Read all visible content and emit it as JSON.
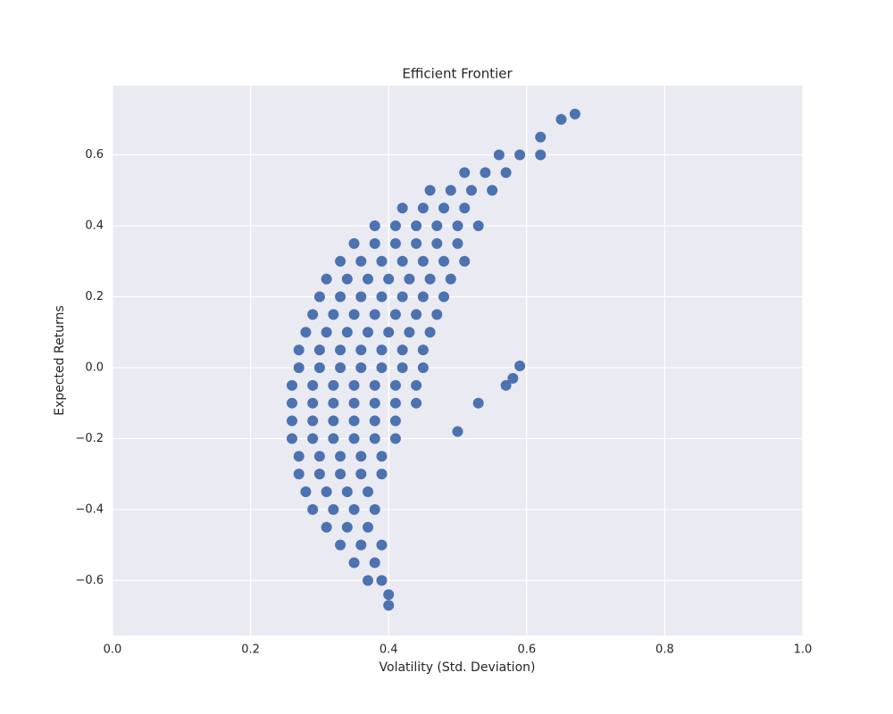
{
  "chart_data": {
    "type": "scatter",
    "title": "Efficient Frontier",
    "x_label": "Volatility (Std. Deviation)",
    "y_label": "Expected Returns",
    "xlim": [
      0,
      1
    ],
    "ylim": [
      -0.755,
      0.795
    ],
    "xticks": [
      {
        "value": 0,
        "label": "0.0"
      },
      0.2,
      0.4,
      0.6,
      0.8,
      {
        "value": 1,
        "label": "1.0"
      }
    ],
    "yticks": [
      {
        "value": -0.6,
        "label": "−0.6"
      },
      {
        "value": -0.4,
        "label": "−0.4"
      },
      {
        "value": -0.2,
        "label": "−0.2"
      },
      {
        "value": 0,
        "label": "0.0"
      },
      0.2,
      0.4,
      0.6
    ],
    "grid": true,
    "series": [
      {
        "color": "#4c72b0",
        "x": [
          0.56,
          0.59,
          0.62,
          0.51,
          0.54,
          0.57,
          0.46,
          0.49,
          0.52,
          0.55,
          0.42,
          0.45,
          0.48,
          0.51,
          0.38,
          0.41,
          0.44,
          0.47,
          0.5,
          0.53,
          0.35,
          0.38,
          0.41,
          0.44,
          0.47,
          0.5,
          0.33,
          0.36,
          0.39,
          0.42,
          0.45,
          0.48,
          0.51,
          0.31,
          0.34,
          0.37,
          0.4,
          0.43,
          0.46,
          0.49,
          0.3,
          0.33,
          0.36,
          0.39,
          0.42,
          0.45,
          0.48,
          0.29,
          0.32,
          0.35,
          0.38,
          0.41,
          0.44,
          0.47,
          0.28,
          0.31,
          0.34,
          0.37,
          0.4,
          0.43,
          0.46,
          0.27,
          0.3,
          0.33,
          0.36,
          0.39,
          0.42,
          0.45,
          0.27,
          0.3,
          0.33,
          0.36,
          0.39,
          0.42,
          0.45,
          0.26,
          0.29,
          0.32,
          0.35,
          0.38,
          0.41,
          0.44,
          0.26,
          0.29,
          0.32,
          0.35,
          0.38,
          0.41,
          0.44,
          0.26,
          0.29,
          0.32,
          0.35,
          0.38,
          0.41,
          0.26,
          0.29,
          0.32,
          0.35,
          0.38,
          0.41,
          0.27,
          0.3,
          0.33,
          0.36,
          0.39,
          0.27,
          0.3,
          0.33,
          0.36,
          0.39,
          0.28,
          0.31,
          0.34,
          0.37,
          0.29,
          0.32,
          0.35,
          0.38,
          0.31,
          0.34,
          0.37,
          0.33,
          0.36,
          0.39,
          0.35,
          0.38,
          0.37,
          0.39,
          0.65,
          0.67,
          0.62,
          0.59,
          0.58,
          0.57,
          0.4,
          0.4,
          0.5,
          0.53
        ],
        "values": [
          0.6,
          0.6,
          0.6,
          0.55,
          0.55,
          0.55,
          0.5,
          0.5,
          0.5,
          0.5,
          0.45,
          0.45,
          0.45,
          0.45,
          0.4,
          0.4,
          0.4,
          0.4,
          0.4,
          0.4,
          0.35,
          0.35,
          0.35,
          0.35,
          0.35,
          0.35,
          0.3,
          0.3,
          0.3,
          0.3,
          0.3,
          0.3,
          0.3,
          0.25,
          0.25,
          0.25,
          0.25,
          0.25,
          0.25,
          0.25,
          0.2,
          0.2,
          0.2,
          0.2,
          0.2,
          0.2,
          0.2,
          0.15,
          0.15,
          0.15,
          0.15,
          0.15,
          0.15,
          0.15,
          0.1,
          0.1,
          0.1,
          0.1,
          0.1,
          0.1,
          0.1,
          0.05,
          0.05,
          0.05,
          0.05,
          0.05,
          0.05,
          0.05,
          0,
          0,
          0,
          0,
          0,
          0,
          0,
          -0.05,
          -0.05,
          -0.05,
          -0.05,
          -0.05,
          -0.05,
          -0.05,
          -0.1,
          -0.1,
          -0.1,
          -0.1,
          -0.1,
          -0.1,
          -0.1,
          -0.15,
          -0.15,
          -0.15,
          -0.15,
          -0.15,
          -0.15,
          -0.2,
          -0.2,
          -0.2,
          -0.2,
          -0.2,
          -0.2,
          -0.25,
          -0.25,
          -0.25,
          -0.25,
          -0.25,
          -0.3,
          -0.3,
          -0.3,
          -0.3,
          -0.3,
          -0.35,
          -0.35,
          -0.35,
          -0.35,
          -0.4,
          -0.4,
          -0.4,
          -0.4,
          -0.45,
          -0.45,
          -0.45,
          -0.5,
          -0.5,
          -0.5,
          -0.55,
          -0.55,
          -0.6,
          -0.6,
          0.7,
          0.715,
          0.65,
          0.005,
          -0.03,
          -0.05,
          -0.67,
          -0.64,
          -0.18,
          -0.1
        ]
      }
    ]
  }
}
